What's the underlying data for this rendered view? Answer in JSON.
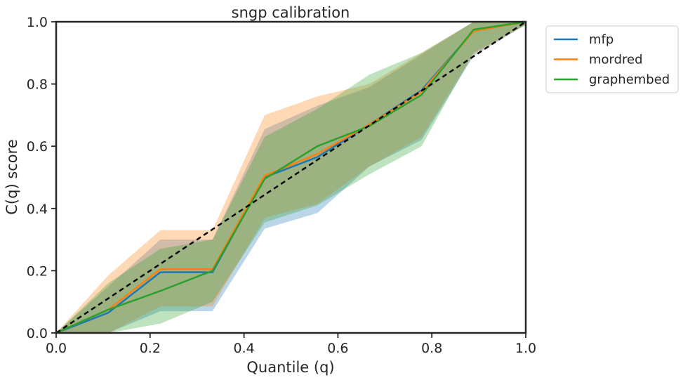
{
  "chart_data": {
    "type": "line",
    "title": "sngp calibration",
    "xlabel": "Quantile (q)",
    "ylabel": "C(q) score",
    "xlim": [
      0,
      1
    ],
    "ylim": [
      0,
      1
    ],
    "xticks": [
      "0.0",
      "0.2",
      "0.4",
      "0.6",
      "0.8",
      "1.0"
    ],
    "yticks": [
      "0.0",
      "0.2",
      "0.4",
      "0.6",
      "0.8",
      "1.0"
    ],
    "grid": false,
    "legend_position": "outside-top-right",
    "x": [
      0,
      0.111,
      0.222,
      0.333,
      0.444,
      0.556,
      0.667,
      0.778,
      0.889,
      1.0
    ],
    "series": [
      {
        "name": "mfp",
        "color": "#1f77b4",
        "values": [
          0,
          0.065,
          0.195,
          0.195,
          0.5,
          0.565,
          0.67,
          0.78,
          0.97,
          1.0
        ],
        "lower": [
          0,
          0.0,
          0.07,
          0.07,
          0.335,
          0.385,
          0.535,
          0.62,
          0.89,
          0.99
        ],
        "upper": [
          0,
          0.15,
          0.3,
          0.3,
          0.655,
          0.73,
          0.79,
          0.895,
          1.0,
          1.0
        ]
      },
      {
        "name": "mordred",
        "color": "#ff7f0e",
        "values": [
          0,
          0.075,
          0.205,
          0.205,
          0.505,
          0.575,
          0.67,
          0.775,
          0.97,
          1.0
        ],
        "lower": [
          0,
          0.0,
          0.085,
          0.085,
          0.37,
          0.415,
          0.535,
          0.63,
          0.895,
          0.99
        ],
        "upper": [
          0,
          0.185,
          0.33,
          0.33,
          0.7,
          0.76,
          0.8,
          0.9,
          1.0,
          1.0
        ]
      },
      {
        "name": "graphembed",
        "color": "#2ca02c",
        "values": [
          0,
          0.075,
          0.135,
          0.2,
          0.495,
          0.6,
          0.665,
          0.765,
          0.975,
          1.0
        ],
        "lower": [
          0,
          0.0,
          0.03,
          0.1,
          0.355,
          0.41,
          0.51,
          0.6,
          0.9,
          0.99
        ],
        "upper": [
          0,
          0.16,
          0.27,
          0.3,
          0.63,
          0.72,
          0.83,
          0.9,
          1.0,
          1.0
        ]
      }
    ],
    "reference_line": {
      "style": "dashed",
      "color": "#000000",
      "from": [
        0,
        0
      ],
      "to": [
        1,
        1
      ]
    }
  }
}
